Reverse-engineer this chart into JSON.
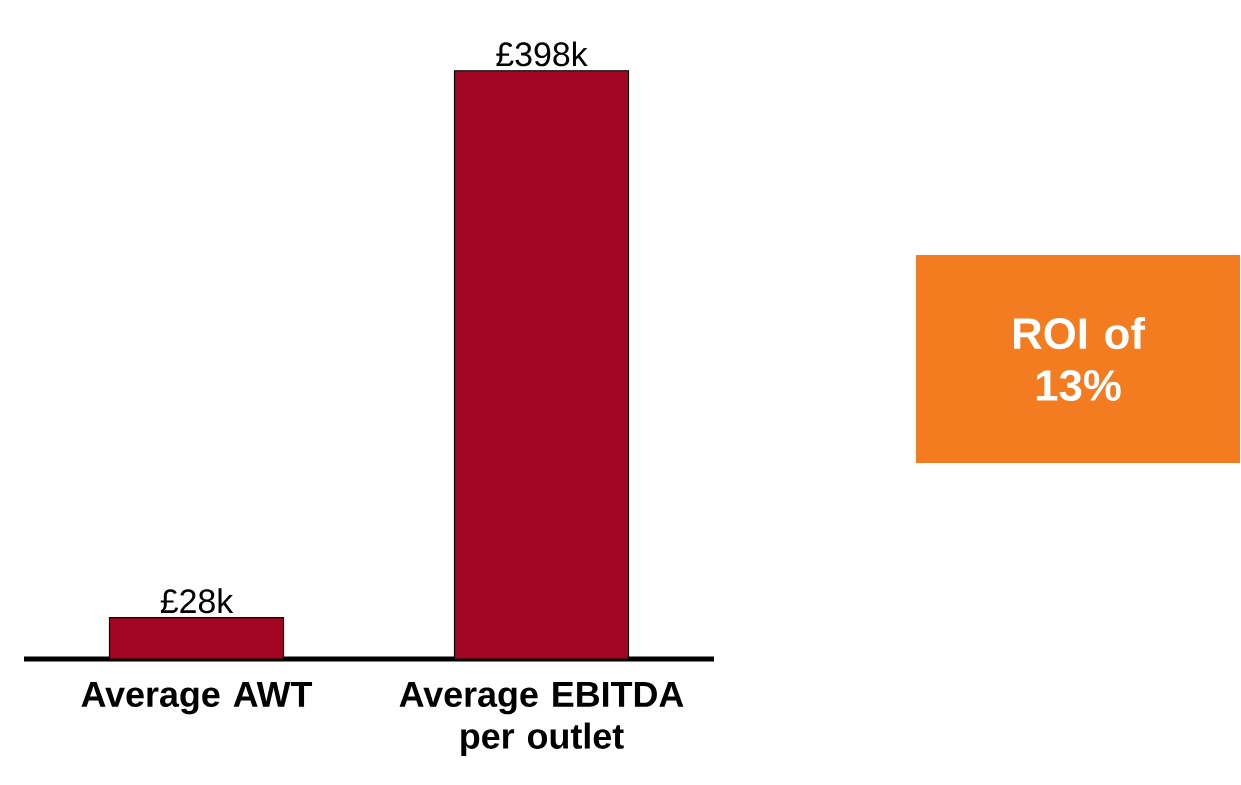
{
  "chart_data": {
    "type": "bar",
    "categories": [
      "Average AWT",
      "Average EBITDA per outlet"
    ],
    "values": [
      28,
      398
    ],
    "value_labels": [
      "£28k",
      "£398k"
    ],
    "color": "#a30622",
    "annotations": [
      "ROI of 13%"
    ]
  }
}
